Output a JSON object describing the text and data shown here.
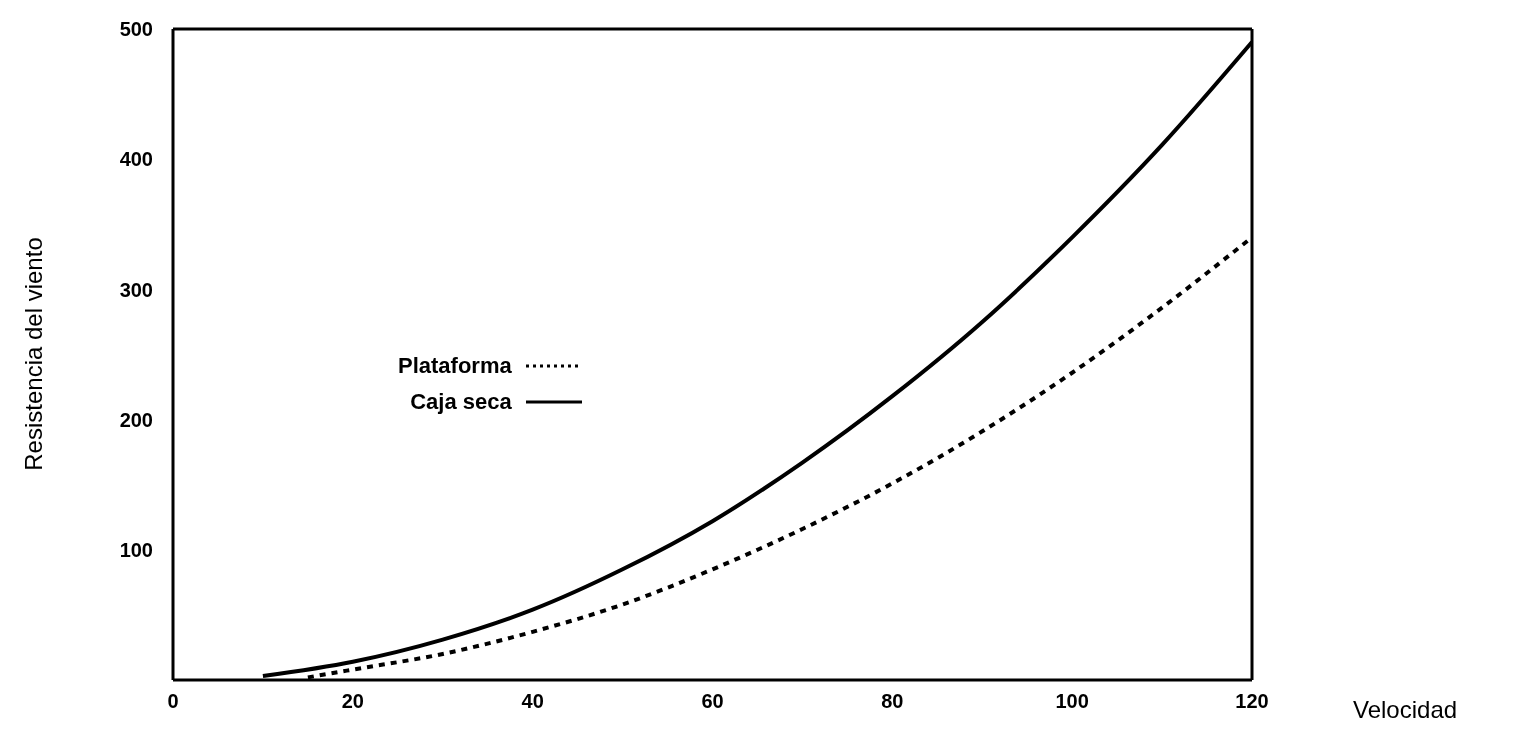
{
  "chart_data": {
    "type": "line",
    "xlabel": "Velocidad",
    "ylabel": "Resistencia del viento",
    "xlim": [
      0,
      120
    ],
    "xticks": [
      0,
      20,
      40,
      60,
      80,
      100,
      120
    ],
    "ylim": [
      0,
      500
    ],
    "yticks": [
      100,
      200,
      300,
      400,
      500
    ],
    "legend": "left",
    "marker": "none",
    "series": [
      {
        "name": "Plataforma",
        "color": "#000000",
        "line_style": "dotted",
        "x": [
          15,
          20,
          30,
          40,
          50,
          60,
          70,
          80,
          90,
          100,
          110,
          120
        ],
        "values": [
          2,
          8,
          20,
          37,
          58,
          85,
          116,
          151,
          191,
          236,
          286,
          340
        ]
      },
      {
        "name": "Caja seca",
        "color": "#000000",
        "line_style": "solid",
        "x": [
          10,
          20,
          30,
          40,
          50,
          60,
          70,
          80,
          90,
          100,
          110,
          120
        ],
        "values": [
          3,
          14,
          31,
          54,
          85,
          122,
          167,
          218,
          275,
          340,
          411,
          490
        ]
      }
    ]
  }
}
